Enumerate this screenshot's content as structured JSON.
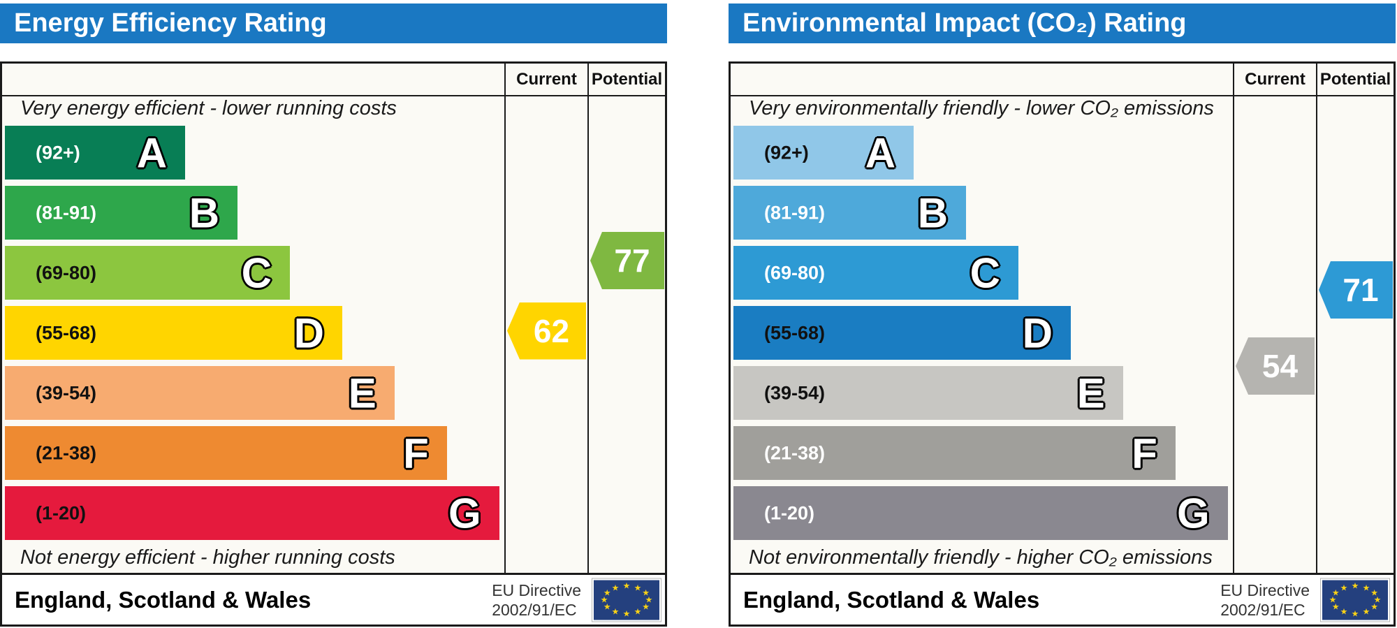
{
  "theme": {
    "header_bg": "#1a78c2",
    "table_border": "#1a1a1a",
    "flag_bg": "#24407e",
    "flag_star": "#f7d117"
  },
  "chart_data": [
    {
      "type": "bar",
      "title": "Energy Efficiency Rating",
      "columns": {
        "current": "Current",
        "potential": "Potential"
      },
      "top_caption": "Very energy efficient - lower running costs",
      "bottom_caption": "Not energy efficient - higher running costs",
      "bands": [
        {
          "letter": "A",
          "range_label": "(92+)",
          "lo": 92,
          "hi": 100,
          "color": "#087e55",
          "label_color": "#ffffff"
        },
        {
          "letter": "B",
          "range_label": "(81-91)",
          "lo": 81,
          "hi": 91,
          "color": "#2ea74b",
          "label_color": "#ffffff"
        },
        {
          "letter": "C",
          "range_label": "(69-80)",
          "lo": 69,
          "hi": 80,
          "color": "#8cc63f",
          "label_color": "#111111"
        },
        {
          "letter": "D",
          "range_label": "(55-68)",
          "lo": 55,
          "hi": 68,
          "color": "#ffd500",
          "label_color": "#111111"
        },
        {
          "letter": "E",
          "range_label": "(39-54)",
          "lo": 39,
          "hi": 54,
          "color": "#f7ab70",
          "label_color": "#111111"
        },
        {
          "letter": "F",
          "range_label": "(21-38)",
          "lo": 21,
          "hi": 38,
          "color": "#ee8a31",
          "label_color": "#111111"
        },
        {
          "letter": "G",
          "range_label": "(1-20)",
          "lo": 1,
          "hi": 20,
          "color": "#e51a3d",
          "label_color": "#111111"
        }
      ],
      "current": {
        "value": 62,
        "color": "#ffd500"
      },
      "potential": {
        "value": 77,
        "color": "#7fb841"
      },
      "footer": {
        "region": "England, Scotland & Wales",
        "directive_line1": "EU Directive",
        "directive_line2": "2002/91/EC"
      }
    },
    {
      "type": "bar",
      "title": "Environmental Impact (CO₂) Rating",
      "columns": {
        "current": "Current",
        "potential": "Potential"
      },
      "top_caption": "Very environmentally friendly - lower CO₂ emissions",
      "bottom_caption": "Not environmentally friendly - higher CO₂ emissions",
      "bands": [
        {
          "letter": "A",
          "range_label": "(92+)",
          "lo": 92,
          "hi": 100,
          "color": "#90c7e8",
          "label_color": "#111111"
        },
        {
          "letter": "B",
          "range_label": "(81-91)",
          "lo": 81,
          "hi": 91,
          "color": "#4ea9da",
          "label_color": "#ffffff"
        },
        {
          "letter": "C",
          "range_label": "(69-80)",
          "lo": 69,
          "hi": 80,
          "color": "#2d9ad4",
          "label_color": "#ffffff"
        },
        {
          "letter": "D",
          "range_label": "(55-68)",
          "lo": 55,
          "hi": 68,
          "color": "#1a7dc2",
          "label_color": "#111111"
        },
        {
          "letter": "E",
          "range_label": "(39-54)",
          "lo": 39,
          "hi": 54,
          "color": "#c7c6c2",
          "label_color": "#111111"
        },
        {
          "letter": "F",
          "range_label": "(21-38)",
          "lo": 21,
          "hi": 38,
          "color": "#a09f9b",
          "label_color": "#ffffff"
        },
        {
          "letter": "G",
          "range_label": "(1-20)",
          "lo": 1,
          "hi": 20,
          "color": "#8a8890",
          "label_color": "#ffffff"
        }
      ],
      "current": {
        "value": 54,
        "color": "#b5b4b0"
      },
      "potential": {
        "value": 71,
        "color": "#2d9ad5"
      },
      "footer": {
        "region": "England, Scotland & Wales",
        "directive_line1": "EU Directive",
        "directive_line2": "2002/91/EC"
      }
    }
  ]
}
